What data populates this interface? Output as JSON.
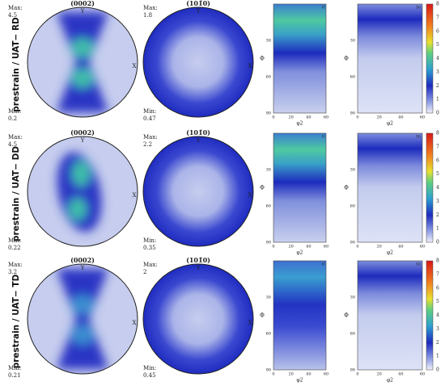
{
  "rows": [
    {
      "label": "prestrain / UAT− RD",
      "pole_figures": [
        {
          "title": "(0002)",
          "max_label": "Max:",
          "max": "4.5",
          "min_label": "Min:",
          "min": "0.2",
          "axis_y": "Y",
          "axis_x": "X"
        },
        {
          "title": "(101̄0)",
          "max_label": "Max:",
          "max": "1.8",
          "min_label": "Min:",
          "min": "0.47",
          "axis_y": "Y",
          "axis_x": "X"
        }
      ],
      "odf": [
        {
          "corner": "0"
        },
        {
          "corner": "30"
        }
      ]
    },
    {
      "label": "prestrain / UAT− DD",
      "pole_figures": [
        {
          "title": "(0002)",
          "max_label": "Max:",
          "max": "4.5",
          "min_label": "Min:",
          "min": "0.22",
          "axis_y": "Y",
          "axis_x": "X"
        },
        {
          "title": "(101̄0)",
          "max_label": "Max:",
          "max": "2.2",
          "min_label": "Min:",
          "min": "0.35",
          "axis_y": "Y",
          "axis_x": "X"
        }
      ],
      "odf": [
        {
          "corner": "0"
        },
        {
          "corner": "30"
        }
      ]
    },
    {
      "label": "prestrain / UAT− TD",
      "pole_figures": [
        {
          "title": "(0002)",
          "max_label": "Max:",
          "max": "3.2",
          "min_label": "Min:",
          "min": "0.21",
          "axis_y": "Y",
          "axis_x": "X"
        },
        {
          "title": "(101̄0)",
          "max_label": "Max:",
          "max": "2",
          "min_label": "Min:",
          "min": "0.45",
          "axis_y": "Y",
          "axis_x": "X"
        }
      ],
      "odf": [
        {
          "corner": "0"
        },
        {
          "corner": "30"
        }
      ]
    }
  ],
  "odf_axes": {
    "y_label": "Φ",
    "y_ticks": [
      "30",
      "60",
      "90"
    ],
    "x_label": "φ2",
    "x_ticks": [
      "0",
      "20",
      "40",
      "60"
    ],
    "colorbar_ticks": [
      "0",
      "1",
      "2",
      "3",
      "4",
      "5",
      "6",
      "7",
      "8"
    ]
  }
}
